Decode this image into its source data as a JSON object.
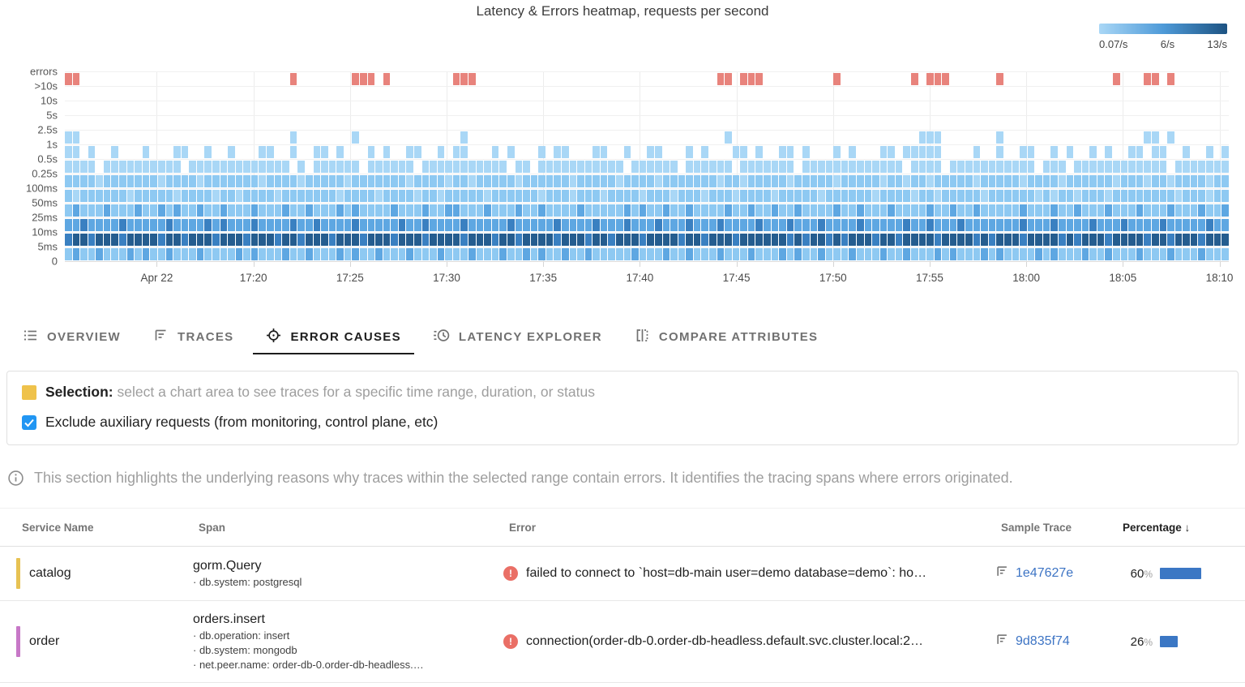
{
  "chart_data": {
    "type": "heatmap",
    "title": "Latency & Errors heatmap, requests per second",
    "scale": {
      "min": "0.07/s",
      "mid": "6/s",
      "max": "13/s"
    },
    "legend_gradient": [
      "#a9d7f6",
      "#4e9ad8",
      "#1d5382"
    ],
    "x_ticks": [
      "Apr 22",
      "17:20",
      "17:25",
      "17:30",
      "17:35",
      "17:40",
      "17:45",
      "17:50",
      "17:55",
      "18:00",
      "18:05",
      "18:10"
    ],
    "x_tick_start_pct": 7.9,
    "x_tick_step_pct": 8.3,
    "y_labels": [
      "errors",
      ">10s",
      "10s",
      "5s",
      "2.5s",
      "1s",
      "0.5s",
      "0.25s",
      "100ms",
      "50ms",
      "25ms",
      "10ms",
      "5ms",
      "0"
    ],
    "columns": 150,
    "levels": {
      "1": "#a9d7f6",
      "2": "#8ec9f2",
      "3": "#5ea7e2",
      "4": "#3a80c1",
      "5": "#255d8f",
      "R": "#e8837c"
    },
    "rows": [
      {
        "bucket": "errors",
        "cells": [
          "RR........",
          "..........",
          ".........R",
          ".......RRR",
          ".R........",
          "RRR.......",
          "..........",
          "..........",
          "....RR.RRR",
          ".........R",
          ".........R",
          ".RRR......",
          "R.........",
          ".....R...R",
          "R.R......."
        ]
      },
      {
        "bucket": ">10s",
        "cells": []
      },
      {
        "bucket": "10s",
        "cells": []
      },
      {
        "bucket": "5s",
        "cells": []
      },
      {
        "bucket": "2.5s",
        "cells": [
          "11........",
          "..........",
          ".........1",
          ".......1..",
          "..........",
          ".1........",
          "..........",
          "..........",
          ".....1....",
          "..........",
          "..........",
          "111.......",
          "1.........",
          ".........1",
          "1.1......."
        ]
      },
      {
        "bucket": "1s",
        "cells": [
          "11.1..1...",
          "1...11..1.",
          ".1...11..1",
          "..11.1...1",
          ".1..11..1.",
          "11...1.1..",
          ".1.11...11",
          "..1..11...",
          "1.1...11.1",
          "..11.1...1",
          ".1...11.11",
          "111....1..",
          "1..11..1.1",
          "..1.1..11.",
          "11..1..1.1"
        ]
      },
      {
        "bucket": "0.5s",
        "cells": [
          "1111.11111",
          "11111.1111",
          "111111111.",
          "1.111111.1",
          "11111.1111",
          "1111111.11",
          ".111111111",
          "11.111111.",
          "111111.111",
          "1111.11111",
          "11111111.1",
          "111.111111",
          "11111.111.",
          "1111111111",
          "11.1111111"
        ]
      },
      {
        "bucket": "0.25s",
        "cells": [
          "2222122222",
          "2212222122",
          "2222212222",
          "1222221222",
          "2222122221",
          "2212222212",
          "2222212222",
          "2122221222",
          "2222122122",
          "2221222221",
          "2222212212",
          "2122222122",
          "2221222212",
          "2222212221",
          "2212222122"
        ]
      },
      {
        "bucket": "100ms",
        "cells": [
          "2122222212",
          "2222122221",
          "2212222122",
          "2222212222",
          "1222212212",
          "2222122222",
          "2122212221",
          "2222122212",
          "2212221222",
          "2122222122",
          "2222122221",
          "2212222212",
          "2222212122",
          "1222122222",
          "2221222122"
        ]
      },
      {
        "bucket": "50ms",
        "cells": [
          "2322232223",
          "2232322322",
          "3222322232",
          "2322232322",
          "2232223223",
          "3222322232",
          "2322223222",
          "2232322322",
          "3222232232",
          "2322322223",
          "2232223222",
          "2322322322",
          "2223222322",
          "3222322232",
          "2232223223"
        ]
      },
      {
        "bucket": "25ms",
        "cells": [
          "3343333433",
          "3334333343",
          "4333433334",
          "3343333433",
          "3334334333",
          "3433333433",
          "3334333343",
          "3343334333",
          "4333433334",
          "3334333433",
          "3343333343",
          "3433343333",
          "3334333433",
          "3343334333",
          "3433333433"
        ]
      },
      {
        "bucket": "10ms",
        "cells": [
          "4554555455",
          "5545545554",
          "5554555455",
          "4555455545",
          "5545554555",
          "5455545545",
          "5554555455",
          "4555455554",
          "5545554555",
          "5554545545",
          "4555455455",
          "5545555454",
          "5554555545",
          "4555455554",
          "5545554555"
        ]
      },
      {
        "bucket": "5ms",
        "cells": [
          "2322322232",
          "3223222322",
          "2232322232",
          "2322232322",
          "3222322232",
          "2232223223",
          "2322322322",
          "2223222322",
          "3222322232",
          "2232322322",
          "2322232232",
          "2232322232",
          "3222232322",
          "2322322232",
          "2232223222"
        ]
      }
    ]
  },
  "tabs": [
    {
      "label": "OVERVIEW",
      "icon": "overview-list-icon",
      "active": false
    },
    {
      "label": "TRACES",
      "icon": "traces-icon",
      "active": false
    },
    {
      "label": "ERROR CAUSES",
      "icon": "crosshair-icon",
      "active": true
    },
    {
      "label": "LATENCY EXPLORER",
      "icon": "latency-history-icon",
      "active": false
    },
    {
      "label": "COMPARE ATTRIBUTES",
      "icon": "compare-icon",
      "active": false
    }
  ],
  "selection_panel": {
    "swatch_color": "#efc24b",
    "label": "Selection:",
    "description": "select a chart area to see traces for a specific time range, duration, or status",
    "checkbox": {
      "checked": true,
      "color": "#2196f3",
      "label": "Exclude auxiliary requests (from monitoring, control plane, etc)"
    }
  },
  "info": {
    "text": "This section highlights the underlying reasons why traces within the selected range contain errors. It identifies the tracing spans where errors originated."
  },
  "table": {
    "columns": [
      {
        "label": "Service Name",
        "sorted": false
      },
      {
        "label": "Span",
        "sorted": false
      },
      {
        "label": "Error",
        "sorted": false
      },
      {
        "label": "Sample Trace",
        "sorted": false
      },
      {
        "label": "Percentage",
        "sorted": true,
        "sort_arrow": "↓"
      }
    ],
    "percent_sign": "%",
    "bar_color": "#3b77c4",
    "rows": [
      {
        "service": "catalog",
        "service_color": "#e7c253",
        "span_name": "gorm.Query",
        "span_attrs": [
          "db.system: postgresql"
        ],
        "error": "failed to connect to `host=db-main user=demo database=demo`: ho…",
        "sample_trace": "1e47627e",
        "percentage": 60
      },
      {
        "service": "order",
        "service_color": "#c778c7",
        "span_name": "orders.insert",
        "span_attrs": [
          "db.operation: insert",
          "db.system: mongodb",
          "net.peer.name: order-db-0.order-db-headless.…"
        ],
        "error": "connection(order-db-0.order-db-headless.default.svc.cluster.local:2…",
        "sample_trace": "9d835f74",
        "percentage": 26
      }
    ]
  }
}
